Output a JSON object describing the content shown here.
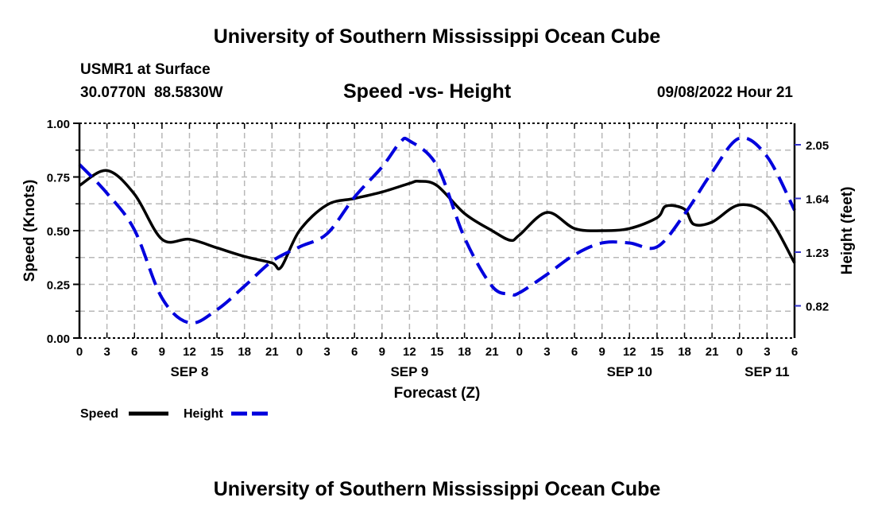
{
  "header": {
    "title": "University of Southern Mississippi Ocean Cube",
    "station": "USMR1 at Surface",
    "coords": "30.0770N  88.5830W",
    "subtitle": "Speed -vs- Height",
    "datetime": "09/08/2022 Hour 21"
  },
  "footer": {
    "title": "University of Southern Mississippi Ocean Cube"
  },
  "chart_data": {
    "type": "line",
    "title": "Speed -vs- Height",
    "xlabel": "Forecast (Z)",
    "ylabel": "Speed (Knots)",
    "y2label": "Height (feet)",
    "xlim_hours": [
      0,
      78
    ],
    "ylim": [
      0,
      1
    ],
    "y2lim": [
      0.574,
      2.214
    ],
    "grid": true,
    "x_tick_labels": [
      "0",
      "3",
      "6",
      "9",
      "12",
      "15",
      "18",
      "21",
      "0",
      "3",
      "6",
      "9",
      "12",
      "15",
      "18",
      "21",
      "0",
      "3",
      "6",
      "9",
      "12",
      "15",
      "18",
      "21",
      "0",
      "3",
      "6"
    ],
    "date_labels": [
      {
        "hour": 12,
        "label": "SEP 8"
      },
      {
        "hour": 36,
        "label": "SEP 9"
      },
      {
        "hour": 60,
        "label": "SEP 10"
      },
      {
        "hour": 75,
        "label": "SEP 11"
      }
    ],
    "y_ticks": [
      "0.00",
      "0.25",
      "0.50",
      "0.75",
      "1.00"
    ],
    "y_tick_values": [
      0,
      0.25,
      0.5,
      0.75,
      1.0
    ],
    "y2_ticks": [
      "0.82",
      "1.23",
      "1.64",
      "2.05"
    ],
    "y2_tick_values": [
      0.82,
      1.23,
      1.64,
      2.05
    ],
    "legend_placement": "bottom-left",
    "series": [
      {
        "name": "Speed",
        "color": "#000000",
        "dash": false,
        "axis": "left",
        "x": [
          0,
          3,
          6,
          9,
          12,
          15,
          18,
          21,
          22,
          24,
          27,
          30,
          33,
          36,
          37,
          39,
          42,
          45,
          47,
          48,
          51,
          54,
          57,
          60,
          63,
          64,
          66,
          67,
          69,
          72,
          75,
          78
        ],
        "values": [
          0.71,
          0.78,
          0.67,
          0.46,
          0.46,
          0.42,
          0.38,
          0.35,
          0.33,
          0.5,
          0.62,
          0.65,
          0.68,
          0.72,
          0.73,
          0.71,
          0.58,
          0.5,
          0.455,
          0.48,
          0.585,
          0.51,
          0.5,
          0.51,
          0.56,
          0.615,
          0.6,
          0.53,
          0.54,
          0.62,
          0.57,
          0.35
        ]
      },
      {
        "name": "Height",
        "color": "#0000dd",
        "dash": true,
        "axis": "right",
        "x": [
          0,
          3,
          6,
          9,
          12,
          15,
          18,
          21,
          24,
          27,
          30,
          33,
          35,
          36,
          39,
          42,
          45,
          47,
          48,
          51,
          54,
          57,
          60,
          63,
          66,
          69,
          72,
          75,
          78
        ],
        "values": [
          1.9,
          1.68,
          1.4,
          0.88,
          0.69,
          0.79,
          0.97,
          1.16,
          1.27,
          1.37,
          1.65,
          1.88,
          2.07,
          2.08,
          1.89,
          1.34,
          0.97,
          0.91,
          0.92,
          1.06,
          1.21,
          1.3,
          1.3,
          1.27,
          1.52,
          1.84,
          2.1,
          1.96,
          1.55
        ]
      }
    ]
  }
}
